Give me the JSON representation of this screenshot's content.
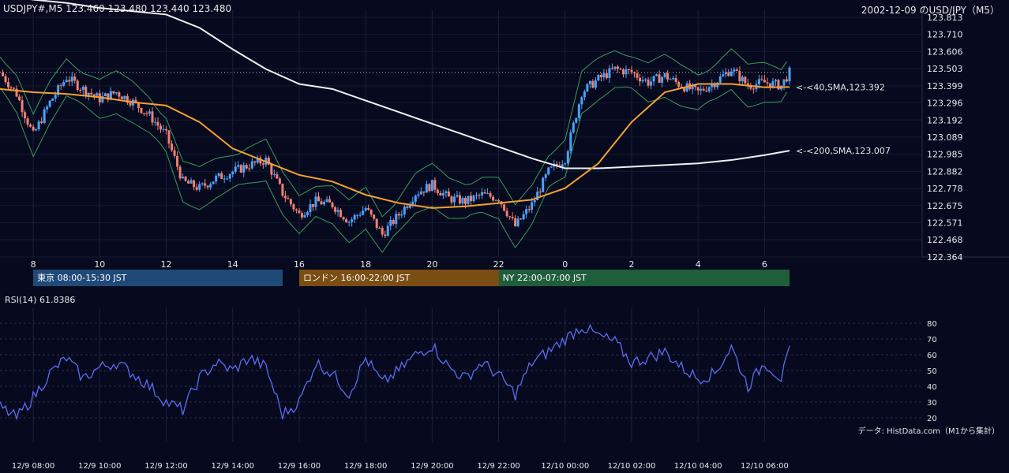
{
  "header": {
    "symbol_ohlc": "USDJPY#,M5 123.460 123.480 123.440 123.480",
    "title_right": "2002-12-09 のUSD/JPY（M5）"
  },
  "price_axis": {
    "labels": [
      "123.813",
      "123.710",
      "123.606",
      "123.503",
      "123.399",
      "123.296",
      "123.192",
      "123.089",
      "122.985",
      "122.882",
      "122.778",
      "122.675",
      "122.571",
      "122.468",
      "122.364"
    ]
  },
  "time_axis_top": {
    "labels": [
      "8",
      "10",
      "12",
      "14",
      "16",
      "18",
      "20",
      "22",
      "0",
      "2",
      "4",
      "6"
    ]
  },
  "time_axis_bottom": {
    "labels": [
      "12/9 08:00",
      "12/9 10:00",
      "12/9 12:00",
      "12/9 14:00",
      "12/9 16:00",
      "12/9 18:00",
      "12/9 20:00",
      "12/9 22:00",
      "12/10 00:00",
      "12/10 02:00",
      "12/10 04:00",
      "12/10 06:00"
    ]
  },
  "sessions": [
    {
      "label": "東京 08:00-15:30 JST",
      "color": "#1f4a78"
    },
    {
      "label": "ロンドン 16:00-22:00 JST",
      "color": "#7a4d12"
    },
    {
      "label": "NY 22:00-07:00 JST",
      "color": "#1f5e3a"
    }
  ],
  "annotations": {
    "sma40": "<-<40,SMA,123.392",
    "sma200": "<-<200,SMA,123.007"
  },
  "rsi": {
    "label": "RSI(14) 61.8386",
    "ticks": [
      "80",
      "70",
      "60",
      "50",
      "40",
      "30",
      "20"
    ]
  },
  "source_note": "データ: HistData.com（M1から集計）",
  "colors": {
    "background": "#070a1f",
    "up_candle": "#4aa3ff",
    "down_candle": "#f08070",
    "sma40": "#f5a030",
    "sma200": "#f0f0f0",
    "bollinger": "#3a9a5a",
    "rsi_line": "#5b6cf0"
  },
  "chart_data": [
    {
      "type": "candlestick",
      "symbol": "USDJPY",
      "timeframe": "M5",
      "ylim": [
        122.364,
        123.813
      ],
      "x_range": [
        "12/9 07:00",
        "12/10 07:00"
      ],
      "indicators": [
        "SMA(40)",
        "SMA(200)",
        "Bollinger Bands"
      ],
      "sma40_x": [
        "07:00",
        "08:00",
        "09:00",
        "10:00",
        "11:00",
        "12:00",
        "13:00",
        "14:00",
        "15:00",
        "16:00",
        "17:00",
        "18:00",
        "19:00",
        "20:00",
        "21:00",
        "22:00",
        "23:00",
        "00:00",
        "01:00",
        "02:00",
        "03:00",
        "04:00",
        "05:00",
        "06:00",
        "06:45"
      ],
      "sma40_y": [
        123.38,
        123.36,
        123.35,
        123.33,
        123.3,
        123.28,
        123.18,
        123.02,
        122.94,
        122.86,
        122.82,
        122.74,
        122.69,
        122.66,
        122.67,
        122.69,
        122.71,
        122.78,
        122.93,
        123.18,
        123.36,
        123.41,
        123.41,
        123.39,
        123.392
      ],
      "sma200_x": [
        "07:00",
        "08:00",
        "09:00",
        "10:00",
        "11:00",
        "12:00",
        "13:00",
        "14:00",
        "15:00",
        "16:00",
        "17:00",
        "18:00",
        "19:00",
        "20:00",
        "21:00",
        "22:00",
        "23:00",
        "00:00",
        "01:00",
        "02:00",
        "03:00",
        "04:00",
        "05:00",
        "06:00",
        "06:45"
      ],
      "sma200_y": [
        123.95,
        123.92,
        123.9,
        123.87,
        123.85,
        123.83,
        123.75,
        123.62,
        123.5,
        123.41,
        123.38,
        123.31,
        123.24,
        123.17,
        123.1,
        123.03,
        122.96,
        122.9,
        122.9,
        122.91,
        122.92,
        122.93,
        122.95,
        122.98,
        123.007
      ],
      "close_x": [
        "07:00",
        "07:30",
        "08:00",
        "08:30",
        "09:00",
        "09:30",
        "10:00",
        "10:30",
        "11:00",
        "11:30",
        "12:00",
        "12:30",
        "13:00",
        "13:30",
        "14:00",
        "14:30",
        "15:00",
        "15:30",
        "16:00",
        "16:30",
        "17:00",
        "17:30",
        "18:00",
        "18:30",
        "19:00",
        "19:30",
        "20:00",
        "20:30",
        "21:00",
        "21:30",
        "22:00",
        "22:30",
        "23:00",
        "23:30",
        "00:00",
        "00:30",
        "01:00",
        "01:30",
        "02:00",
        "02:30",
        "03:00",
        "03:30",
        "04:00",
        "04:30",
        "05:00",
        "05:30",
        "06:00",
        "06:30",
        "06:45"
      ],
      "close_y": [
        123.48,
        123.35,
        123.1,
        123.3,
        123.45,
        123.38,
        123.32,
        123.36,
        123.3,
        123.22,
        123.1,
        122.82,
        122.78,
        122.84,
        122.88,
        122.92,
        122.95,
        122.75,
        122.62,
        122.7,
        122.68,
        122.58,
        122.66,
        122.5,
        122.62,
        122.75,
        122.8,
        122.72,
        122.7,
        122.74,
        122.72,
        122.55,
        122.68,
        122.88,
        122.96,
        123.36,
        123.44,
        123.5,
        123.48,
        123.42,
        123.46,
        123.4,
        123.36,
        123.42,
        123.5,
        123.4,
        123.42,
        123.4,
        123.48
      ]
    },
    {
      "type": "line",
      "name": "RSI(14)",
      "ylim": [
        15,
        85
      ],
      "x": [
        "07:00",
        "07:30",
        "08:00",
        "08:30",
        "09:00",
        "09:30",
        "10:00",
        "10:30",
        "11:00",
        "11:30",
        "12:00",
        "12:30",
        "13:00",
        "13:30",
        "14:00",
        "14:30",
        "15:00",
        "15:30",
        "16:00",
        "16:30",
        "17:00",
        "17:30",
        "18:00",
        "18:30",
        "19:00",
        "19:30",
        "20:00",
        "20:30",
        "21:00",
        "21:30",
        "22:00",
        "22:30",
        "23:00",
        "23:30",
        "00:00",
        "00:30",
        "01:00",
        "01:30",
        "02:00",
        "02:30",
        "03:00",
        "03:30",
        "04:00",
        "04:30",
        "05:00",
        "05:30",
        "06:00",
        "06:30",
        "06:45"
      ],
      "y": [
        27,
        20,
        33,
        48,
        58,
        45,
        52,
        55,
        48,
        40,
        30,
        25,
        45,
        55,
        50,
        58,
        52,
        22,
        30,
        55,
        48,
        35,
        58,
        42,
        50,
        60,
        66,
        52,
        45,
        55,
        47,
        35,
        55,
        62,
        70,
        78,
        72,
        68,
        55,
        58,
        62,
        52,
        45,
        48,
        65,
        40,
        55,
        45,
        61.8386
      ]
    }
  ]
}
